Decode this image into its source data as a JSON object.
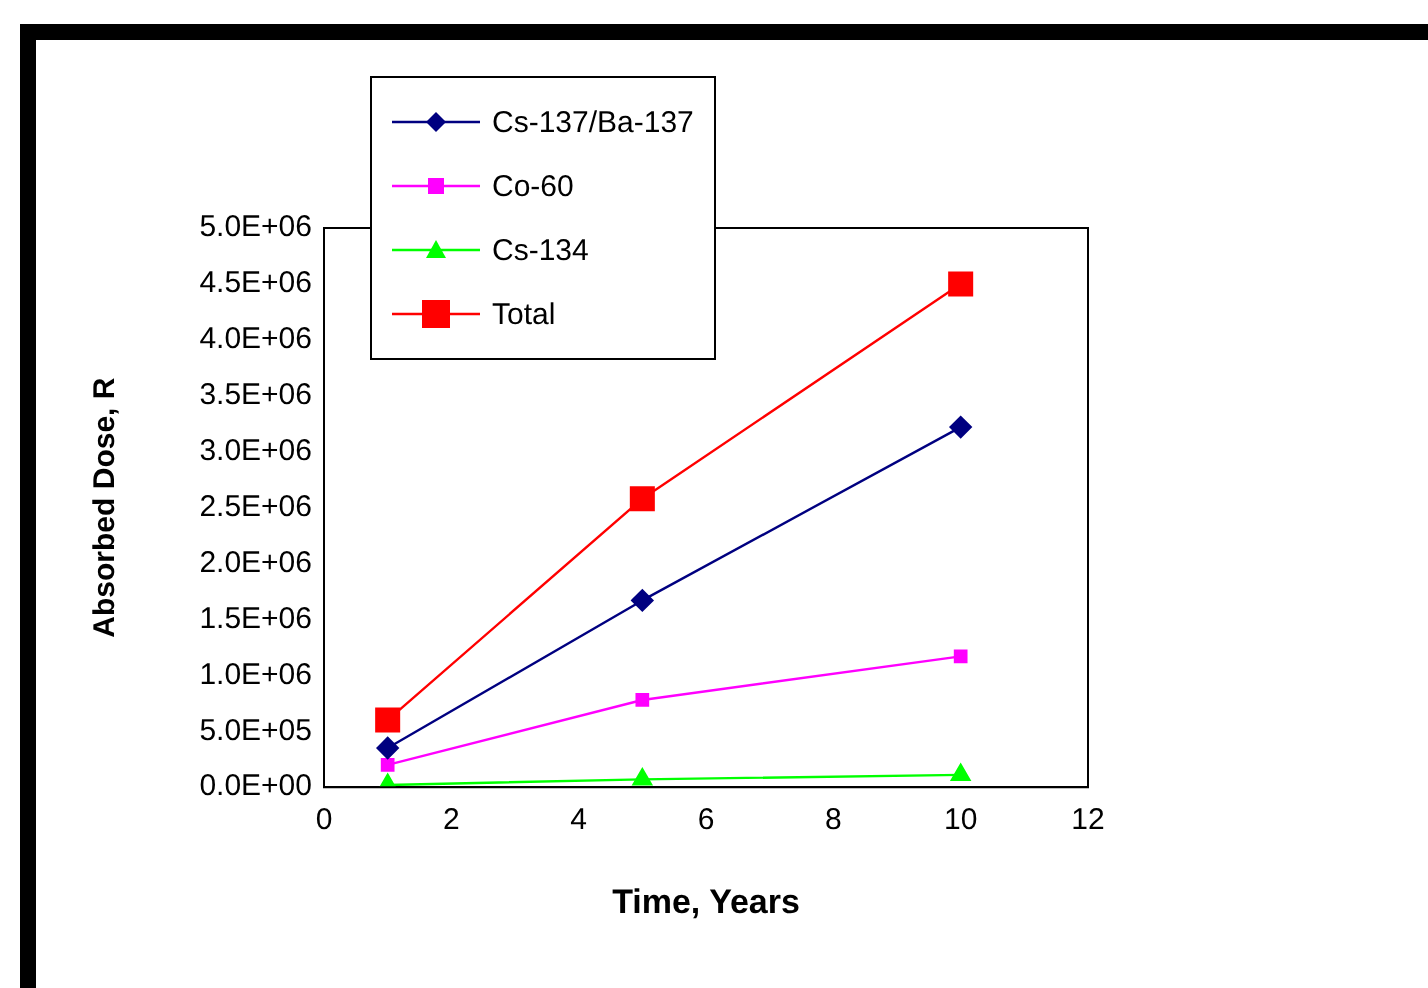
{
  "chart_data": {
    "type": "line",
    "xlabel": "Time, Years",
    "ylabel": "Absorbed Dose, R",
    "x": [
      1,
      5,
      10
    ],
    "series": [
      {
        "name": "Cs-137/Ba-137",
        "color": "#000080",
        "values": [
          350000,
          1670000,
          3220000
        ],
        "marker": "diamond"
      },
      {
        "name": "Co-60",
        "color": "#ff00ff",
        "values": [
          200000,
          780000,
          1170000
        ],
        "marker": "square"
      },
      {
        "name": "Cs-134",
        "color": "#00ff00",
        "values": [
          20000,
          70000,
          110000
        ],
        "marker": "triangle"
      },
      {
        "name": "Total",
        "color": "#ff0000",
        "values": [
          600000,
          2580000,
          4500000
        ],
        "marker": "square"
      }
    ],
    "xlim": [
      0,
      12
    ],
    "xticks": [
      0,
      2,
      4,
      6,
      8,
      10,
      12
    ],
    "ylim": [
      0,
      5000000
    ],
    "yticks": [
      {
        "value": 0,
        "label": "0.0E+00"
      },
      {
        "value": 500000,
        "label": "5.0E+05"
      },
      {
        "value": 1000000,
        "label": "1.0E+06"
      },
      {
        "value": 1500000,
        "label": "1.5E+06"
      },
      {
        "value": 2000000,
        "label": "2.0E+06"
      },
      {
        "value": 2500000,
        "label": "2.5E+06"
      },
      {
        "value": 3000000,
        "label": "3.0E+06"
      },
      {
        "value": 3500000,
        "label": "3.5E+06"
      },
      {
        "value": 4000000,
        "label": "4.0E+06"
      },
      {
        "value": 4500000,
        "label": "4.5E+06"
      },
      {
        "value": 5000000,
        "label": "5.0E+06"
      }
    ],
    "grid": false,
    "legend": "top left",
    "line_style": "solid"
  }
}
